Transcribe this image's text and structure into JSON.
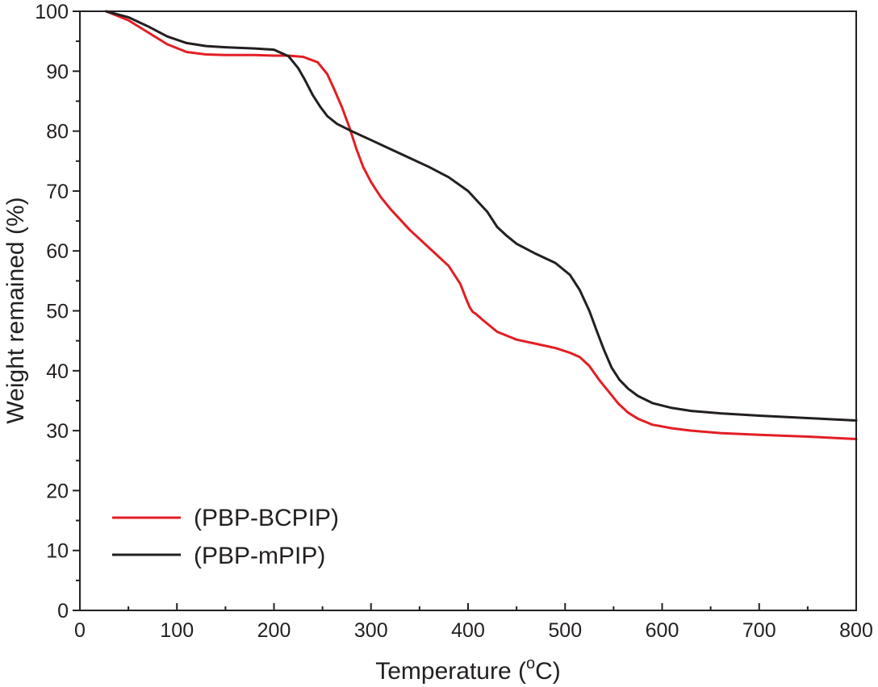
{
  "chart_data": {
    "type": "line",
    "title": "",
    "xlabel": "Temperature (",
    "xlabel_sup": "o",
    "xlabel_end": "C)",
    "ylabel": "Weight remained (%)",
    "xlim": [
      0,
      800
    ],
    "ylim": [
      0,
      100
    ],
    "x_ticks": [
      0,
      100,
      200,
      300,
      400,
      500,
      600,
      700,
      800
    ],
    "y_ticks": [
      0,
      10,
      20,
      30,
      40,
      50,
      60,
      70,
      80,
      90,
      100
    ],
    "x_tick_labels": [
      "0",
      "100",
      "200",
      "300",
      "400",
      "500",
      "600",
      "700",
      "800"
    ],
    "y_tick_labels": [
      "0",
      "10",
      "20",
      "30",
      "40",
      "50",
      "60",
      "70",
      "80",
      "90",
      "100"
    ],
    "grid": false,
    "legend_position": "bottom-left",
    "series": [
      {
        "name": "(PBP-BCPIP)",
        "color": "#e31e24",
        "x": [
          27,
          50,
          70,
          90,
          110,
          130,
          150,
          180,
          200,
          215,
          230,
          245,
          255,
          262,
          270,
          278,
          285,
          292,
          300,
          310,
          320,
          340,
          360,
          380,
          392,
          398,
          402,
          405,
          408,
          415,
          430,
          450,
          470,
          490,
          505,
          515,
          525,
          535,
          545,
          555,
          565,
          575,
          590,
          610,
          630,
          660,
          700,
          750,
          800
        ],
        "y": [
          100,
          98.5,
          96.5,
          94.5,
          93.2,
          92.8,
          92.7,
          92.7,
          92.6,
          92.6,
          92.4,
          91.5,
          89.5,
          87,
          84,
          80.5,
          77,
          74,
          71.5,
          69,
          67,
          63.5,
          60.5,
          57.5,
          54.5,
          52,
          50.5,
          49.8,
          49.5,
          48.5,
          46.5,
          45.2,
          44.5,
          43.8,
          43,
          42.3,
          40.8,
          38.5,
          36.5,
          34.5,
          33,
          32,
          31,
          30.4,
          30,
          29.6,
          29.3,
          29,
          28.6
        ]
      },
      {
        "name": "(PBP-mPIP)",
        "color": "#231f20",
        "x": [
          27,
          50,
          70,
          90,
          110,
          130,
          150,
          180,
          200,
          215,
          225,
          232,
          240,
          248,
          255,
          265,
          280,
          300,
          320,
          340,
          360,
          380,
          400,
          420,
          430,
          440,
          450,
          470,
          490,
          505,
          515,
          525,
          533,
          540,
          548,
          556,
          565,
          575,
          590,
          610,
          630,
          660,
          700,
          750,
          800
        ],
        "y": [
          100,
          99,
          97.5,
          95.8,
          94.7,
          94.2,
          94,
          93.8,
          93.6,
          92.5,
          90.5,
          88.5,
          86,
          84,
          82.5,
          81.2,
          80,
          78.5,
          77,
          75.5,
          74,
          72.3,
          70,
          66.5,
          64,
          62.5,
          61.2,
          59.5,
          58,
          56,
          53.5,
          50,
          46.5,
          43.5,
          40.5,
          38.5,
          37,
          35.8,
          34.6,
          33.8,
          33.3,
          32.9,
          32.5,
          32.1,
          31.7
        ]
      }
    ]
  }
}
